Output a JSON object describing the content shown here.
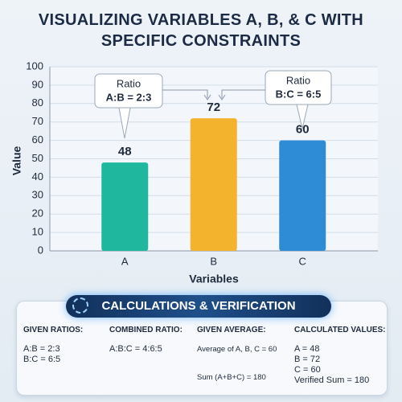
{
  "chart_data": {
    "type": "bar",
    "title": "VISUALIZING VARIABLES A, B, & C WITH SPECIFIC CONSTRAINTS",
    "categories": [
      "A",
      "B",
      "C"
    ],
    "values": [
      48,
      72,
      60
    ],
    "colors": [
      "#1fb89f",
      "#f4b32c",
      "#2e8bd6"
    ],
    "ylim": [
      0,
      100
    ],
    "yticks": [
      0,
      10,
      20,
      30,
      40,
      50,
      60,
      70,
      80,
      90,
      100
    ],
    "grid": true,
    "xlabel": "Variables",
    "ylabel": "Value",
    "annotations": [
      {
        "title": "Ratio",
        "text": "A:B = 2:3"
      },
      {
        "title": "Ratio",
        "text": "B:C = 6:5"
      }
    ]
  },
  "calculations": {
    "title": "CALCULATIONS & VERIFICATION",
    "columns": [
      {
        "heading": "GIVEN RATIOS:",
        "lines": [
          "A:B = 2:3",
          "B:C = 6:5"
        ]
      },
      {
        "heading": "COMBINED RATIO:",
        "lines": [
          "A:B:C = 4:6:5"
        ]
      },
      {
        "heading": "GIVEN AVERAGE:",
        "lines": [
          "Average of A, B, C = 60",
          "Sum (A+B+C) = 180"
        ]
      },
      {
        "heading": "CALCULATED VALUES:",
        "lines": [
          "A = 48",
          "B = 72",
          "C = 60",
          "Verified Sum = 180"
        ]
      }
    ]
  }
}
